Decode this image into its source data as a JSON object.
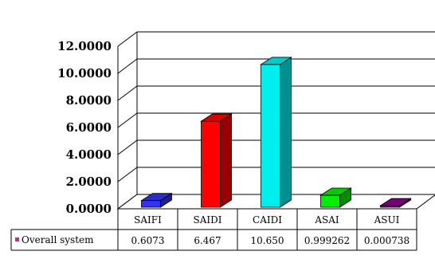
{
  "chart_data": {
    "type": "bar",
    "style": "3d-column-with-data-table",
    "title": "",
    "xlabel": "",
    "ylabel": "",
    "ylim": [
      0,
      12
    ],
    "y_tick_labels": [
      "0.0000",
      "2.0000",
      "4.0000",
      "6.0000",
      "8.0000",
      "10.0000",
      "12.0000"
    ],
    "grid": true,
    "categories": [
      "SAIFI",
      "SAIDI",
      "CAIDI",
      "ASAI",
      "ASUI"
    ],
    "series": [
      {
        "name": "Overall system",
        "values": [
          0.6073,
          6.467,
          10.65,
          0.999262,
          0.000738
        ],
        "table_labels": [
          "0.6073",
          "6.467",
          "10.650",
          "0.999262",
          "0.000738"
        ]
      }
    ],
    "bar_colors": [
      "#3333ee",
      "#ff0000",
      "#00eeee",
      "#00ee00",
      "#880088"
    ],
    "legend_marker_color": "#cc3366",
    "legend_placement": "data-table-row"
  }
}
